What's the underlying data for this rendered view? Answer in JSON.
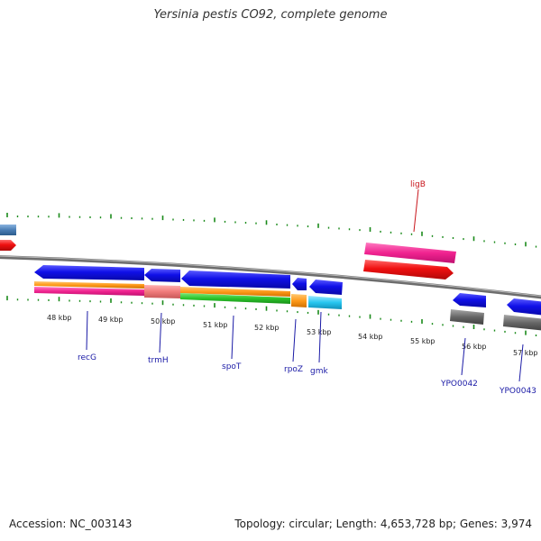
{
  "title": "Yersinia pestis CO92, complete genome",
  "footer": {
    "accession": "Accession: NC_003143",
    "summary": "Topology: circular; Length: 4,653,728 bp; Genes: 3,974"
  },
  "axis_labels": [
    "48 kbp",
    "49 kbp",
    "50 kbp",
    "51 kbp",
    "52 kbp",
    "53 kbp",
    "54 kbp",
    "55 kbp",
    "56 kbp",
    "57 kbp"
  ],
  "gene_labels": {
    "ligB": "ligB",
    "recG": "recG",
    "trmH": "trmH",
    "spoT": "spoT",
    "rpoZ": "rpoZ",
    "gmk": "gmk",
    "YPO0042": "YPO0042",
    "YPO0043": "YPO0043"
  },
  "colors": {
    "forward_gene": "#1010e8",
    "rna_gene": "#e8101a",
    "pink_feature": "#f02390",
    "orange_feature": "#ff9a1a",
    "green_feature": "#2bc42b",
    "light_red_feature": "#f07b7b",
    "cyan_feature": "#27c6f0",
    "gray_feature": "#666666",
    "steel_feature": "#4a7db4",
    "backbone": "#808080",
    "tick": "#1a8a1a",
    "label_blue": "#1a1aa6",
    "label_red": "#c8151b"
  }
}
